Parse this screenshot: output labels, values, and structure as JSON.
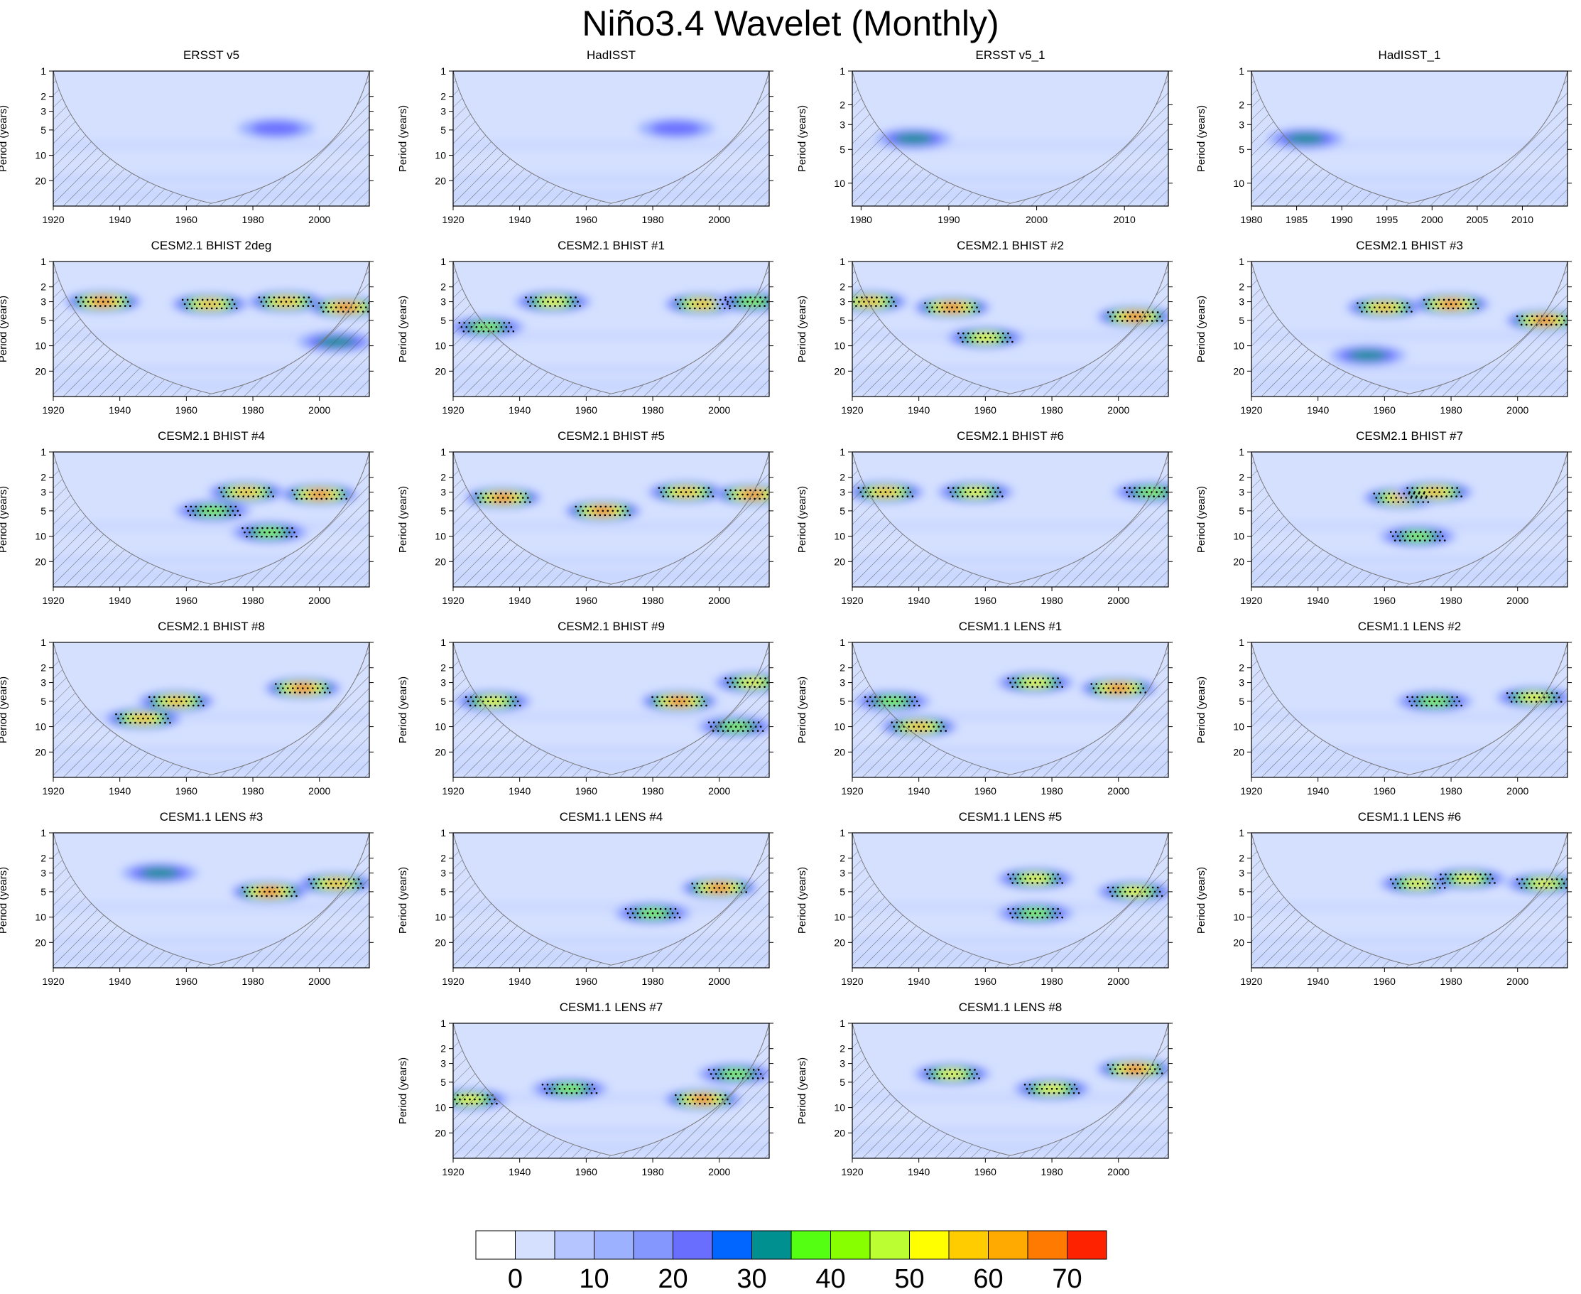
{
  "title": "Niño3.4 Wavelet (Monthly)",
  "ylabel": "Period (years)",
  "colorbar": {
    "colors": [
      "#ffffff",
      "#d5e0ff",
      "#b4c5ff",
      "#9cb1ff",
      "#8397ff",
      "#6a6eff",
      "#0066ff",
      "#009090",
      "#55ff11",
      "#88ff00",
      "#bbff33",
      "#ffff00",
      "#ffcc00",
      "#ffaa00",
      "#ff7a00",
      "#ff2200"
    ],
    "labels": [
      "0",
      "10",
      "20",
      "30",
      "40",
      "50",
      "60",
      "70"
    ]
  },
  "chart_data": [
    {
      "title": "ERSST v5",
      "type": "heatmap",
      "xticks": [
        "1920",
        "1940",
        "1960",
        "1980",
        "2000"
      ],
      "xlim": [
        1920,
        2015
      ],
      "yticks": [
        "1",
        "2",
        "3",
        "5",
        "10",
        "20"
      ],
      "ylim": [
        1,
        40
      ],
      "y_log": true,
      "hot": [
        [
          1987,
          4.8,
          25
        ]
      ],
      "noise_bands": [
        [
          1987,
          4.8,
          25
        ],
        [
          1953,
          5.5,
          18
        ],
        [
          1940,
          4.8,
          15
        ],
        [
          1925,
          2,
          10
        ]
      ]
    },
    {
      "title": "HadISST",
      "type": "heatmap",
      "xticks": [
        "1920",
        "1940",
        "1960",
        "1980",
        "2000"
      ],
      "xlim": [
        1920,
        2015
      ],
      "yticks": [
        "1",
        "2",
        "3",
        "5",
        "10",
        "20"
      ],
      "ylim": [
        1,
        40
      ],
      "y_log": true,
      "hot": [
        [
          1987,
          4.8,
          25
        ]
      ],
      "noise_bands": [
        [
          1987,
          4.8,
          25
        ],
        [
          1955,
          5.2,
          15
        ]
      ]
    },
    {
      "title": "ERSST v5_1",
      "type": "heatmap",
      "xticks": [
        "1980",
        "1990",
        "2000",
        "2010"
      ],
      "xlim": [
        1979,
        2015
      ],
      "yticks": [
        "1",
        "2",
        "3",
        "5",
        "10"
      ],
      "ylim": [
        1,
        16
      ],
      "y_log": true,
      "hot": [
        [
          1986,
          4,
          30
        ]
      ],
      "noise_bands": [
        [
          1986,
          4,
          30
        ],
        [
          1997,
          3.5,
          20
        ]
      ]
    },
    {
      "title": "HadISST_1",
      "type": "heatmap",
      "xticks": [
        "1980",
        "1985",
        "1990",
        "1995",
        "2000",
        "2005",
        "2010"
      ],
      "xlim": [
        1980,
        2015
      ],
      "yticks": [
        "1",
        "2",
        "3",
        "5",
        "10"
      ],
      "ylim": [
        1,
        16
      ],
      "y_log": true,
      "hot": [
        [
          1986,
          4,
          35
        ]
      ],
      "noise_bands": [
        [
          1986,
          4,
          35
        ],
        [
          1998,
          3.5,
          20
        ]
      ]
    },
    {
      "title": "CESM2.1 BHIST 2deg",
      "type": "heatmap",
      "xticks": [
        "1920",
        "1940",
        "1960",
        "1980",
        "2000"
      ],
      "xlim": [
        1920,
        2015
      ],
      "yticks": [
        "1",
        "2",
        "3",
        "5",
        "10",
        "20"
      ],
      "ylim": [
        1,
        40
      ],
      "y_log": true,
      "hot": [
        [
          1935,
          3,
          70
        ],
        [
          1967,
          3.2,
          60
        ],
        [
          1990,
          3,
          65
        ],
        [
          2008,
          3.5,
          70
        ],
        [
          2005,
          9,
          30
        ]
      ]
    },
    {
      "title": "CESM2.1 BHIST #1",
      "type": "heatmap",
      "xticks": [
        "1920",
        "1940",
        "1960",
        "1980",
        "2000"
      ],
      "xlim": [
        1920,
        2015
      ],
      "yticks": [
        "1",
        "2",
        "3",
        "5",
        "10",
        "20"
      ],
      "ylim": [
        1,
        40
      ],
      "y_log": true,
      "hot": [
        [
          1930,
          6,
          45
        ],
        [
          1950,
          3,
          55
        ],
        [
          1995,
          3.2,
          65
        ],
        [
          2010,
          3,
          40
        ]
      ]
    },
    {
      "title": "CESM2.1 BHIST #2",
      "type": "heatmap",
      "xticks": [
        "1920",
        "1940",
        "1960",
        "1980",
        "2000"
      ],
      "xlim": [
        1920,
        2015
      ],
      "yticks": [
        "1",
        "2",
        "3",
        "5",
        "10",
        "20"
      ],
      "ylim": [
        1,
        40
      ],
      "y_log": true,
      "hot": [
        [
          1950,
          3.5,
          70
        ],
        [
          1960,
          8,
          55
        ],
        [
          2005,
          4.5,
          70
        ],
        [
          1925,
          3,
          60
        ]
      ]
    },
    {
      "title": "CESM2.1 BHIST #3",
      "type": "heatmap",
      "xticks": [
        "1920",
        "1940",
        "1960",
        "1980",
        "2000"
      ],
      "xlim": [
        1920,
        2015
      ],
      "yticks": [
        "1",
        "2",
        "3",
        "5",
        "10",
        "20"
      ],
      "ylim": [
        1,
        40
      ],
      "y_log": true,
      "hot": [
        [
          1960,
          3.5,
          65
        ],
        [
          1980,
          3.2,
          70
        ],
        [
          2008,
          5,
          70
        ],
        [
          1955,
          13,
          30
        ]
      ]
    },
    {
      "title": "CESM2.1 BHIST #4",
      "type": "heatmap",
      "xticks": [
        "1920",
        "1940",
        "1960",
        "1980",
        "2000"
      ],
      "xlim": [
        1920,
        2015
      ],
      "yticks": [
        "1",
        "2",
        "3",
        "5",
        "10",
        "20"
      ],
      "ylim": [
        1,
        40
      ],
      "y_log": true,
      "hot": [
        [
          1978,
          3,
          60
        ],
        [
          2000,
          3.2,
          70
        ],
        [
          1968,
          5,
          45
        ],
        [
          1985,
          9,
          40
        ]
      ]
    },
    {
      "title": "CESM2.1 BHIST #5",
      "type": "heatmap",
      "xticks": [
        "1920",
        "1940",
        "1960",
        "1980",
        "2000"
      ],
      "xlim": [
        1920,
        2015
      ],
      "yticks": [
        "1",
        "2",
        "3",
        "5",
        "10",
        "20"
      ],
      "ylim": [
        1,
        40
      ],
      "y_log": true,
      "hot": [
        [
          1935,
          3.5,
          70
        ],
        [
          1965,
          5,
          70
        ],
        [
          1990,
          3,
          65
        ],
        [
          2010,
          3.2,
          70
        ]
      ]
    },
    {
      "title": "CESM2.1 BHIST #6",
      "type": "heatmap",
      "xticks": [
        "1920",
        "1940",
        "1960",
        "1980",
        "2000"
      ],
      "xlim": [
        1920,
        2015
      ],
      "yticks": [
        "1",
        "2",
        "3",
        "5",
        "10",
        "20"
      ],
      "ylim": [
        1,
        40
      ],
      "y_log": true,
      "hot": [
        [
          1930,
          3,
          60
        ],
        [
          1957,
          3,
          50
        ],
        [
          2010,
          3,
          40
        ]
      ]
    },
    {
      "title": "CESM2.1 BHIST #7",
      "type": "heatmap",
      "xticks": [
        "1920",
        "1940",
        "1960",
        "1980",
        "2000"
      ],
      "xlim": [
        1920,
        2015
      ],
      "yticks": [
        "1",
        "2",
        "3",
        "5",
        "10",
        "20"
      ],
      "ylim": [
        1,
        40
      ],
      "y_log": true,
      "hot": [
        [
          1965,
          3.5,
          60
        ],
        [
          1975,
          3,
          60
        ],
        [
          1970,
          10,
          40
        ]
      ]
    },
    {
      "title": "CESM2.1 BHIST #8",
      "type": "heatmap",
      "xticks": [
        "1920",
        "1940",
        "1960",
        "1980",
        "2000"
      ],
      "xlim": [
        1920,
        2015
      ],
      "yticks": [
        "1",
        "2",
        "3",
        "5",
        "10",
        "20"
      ],
      "ylim": [
        1,
        40
      ],
      "y_log": true,
      "hot": [
        [
          1947,
          8,
          65
        ],
        [
          1957,
          5,
          60
        ],
        [
          1995,
          3.5,
          70
        ]
      ]
    },
    {
      "title": "CESM2.1 BHIST #9",
      "type": "heatmap",
      "xticks": [
        "1920",
        "1940",
        "1960",
        "1980",
        "2000"
      ],
      "xlim": [
        1920,
        2015
      ],
      "yticks": [
        "1",
        "2",
        "3",
        "5",
        "10",
        "20"
      ],
      "ylim": [
        1,
        40
      ],
      "y_log": true,
      "hot": [
        [
          1932,
          5,
          50
        ],
        [
          1988,
          5,
          70
        ],
        [
          2005,
          10,
          45
        ],
        [
          2010,
          3,
          50
        ]
      ]
    },
    {
      "title": "CESM1.1 LENS #1",
      "type": "heatmap",
      "xticks": [
        "1920",
        "1940",
        "1960",
        "1980",
        "2000"
      ],
      "xlim": [
        1920,
        2015
      ],
      "yticks": [
        "1",
        "2",
        "3",
        "5",
        "10",
        "20"
      ],
      "ylim": [
        1,
        40
      ],
      "y_log": true,
      "hot": [
        [
          1940,
          10,
          60
        ],
        [
          2000,
          3.5,
          70
        ],
        [
          1975,
          3,
          50
        ],
        [
          1932,
          5,
          40
        ]
      ]
    },
    {
      "title": "CESM1.1 LENS #2",
      "type": "heatmap",
      "xticks": [
        "1920",
        "1940",
        "1960",
        "1980",
        "2000"
      ],
      "xlim": [
        1920,
        2015
      ],
      "yticks": [
        "1",
        "2",
        "3",
        "5",
        "10",
        "20"
      ],
      "ylim": [
        1,
        40
      ],
      "y_log": true,
      "hot": [
        [
          1975,
          5,
          45
        ],
        [
          2005,
          4.5,
          55
        ]
      ]
    },
    {
      "title": "CESM1.1 LENS #3",
      "type": "heatmap",
      "xticks": [
        "1920",
        "1940",
        "1960",
        "1980",
        "2000"
      ],
      "xlim": [
        1920,
        2015
      ],
      "yticks": [
        "1",
        "2",
        "3",
        "5",
        "10",
        "20"
      ],
      "ylim": [
        1,
        40
      ],
      "y_log": true,
      "hot": [
        [
          1985,
          5,
          70
        ],
        [
          2005,
          4,
          60
        ],
        [
          1952,
          3,
          35
        ]
      ]
    },
    {
      "title": "CESM1.1 LENS #4",
      "type": "heatmap",
      "xticks": [
        "1920",
        "1940",
        "1960",
        "1980",
        "2000"
      ],
      "xlim": [
        1920,
        2015
      ],
      "yticks": [
        "1",
        "2",
        "3",
        "5",
        "10",
        "20"
      ],
      "ylim": [
        1,
        40
      ],
      "y_log": true,
      "hot": [
        [
          2000,
          4.5,
          70
        ],
        [
          1980,
          9,
          45
        ]
      ]
    },
    {
      "title": "CESM1.1 LENS #5",
      "type": "heatmap",
      "xticks": [
        "1920",
        "1940",
        "1960",
        "1980",
        "2000"
      ],
      "xlim": [
        1920,
        2015
      ],
      "yticks": [
        "1",
        "2",
        "3",
        "5",
        "10",
        "20"
      ],
      "ylim": [
        1,
        40
      ],
      "y_log": true,
      "hot": [
        [
          1975,
          3.5,
          55
        ],
        [
          1975,
          9,
          45
        ],
        [
          2005,
          5,
          50
        ]
      ]
    },
    {
      "title": "CESM1.1 LENS #6",
      "type": "heatmap",
      "xticks": [
        "1920",
        "1940",
        "1960",
        "1980",
        "2000"
      ],
      "xlim": [
        1920,
        2015
      ],
      "yticks": [
        "1",
        "2",
        "3",
        "5",
        "10",
        "20"
      ],
      "ylim": [
        1,
        40
      ],
      "y_log": true,
      "hot": [
        [
          1970,
          4,
          55
        ],
        [
          1985,
          3.5,
          55
        ],
        [
          2008,
          4,
          50
        ]
      ]
    },
    {
      "title": "CESM1.1 LENS #7",
      "type": "heatmap",
      "xticks": [
        "1920",
        "1940",
        "1960",
        "1980",
        "2000"
      ],
      "xlim": [
        1920,
        2015
      ],
      "yticks": [
        "1",
        "2",
        "3",
        "5",
        "10",
        "20"
      ],
      "ylim": [
        1,
        40
      ],
      "y_log": true,
      "hot": [
        [
          1995,
          8,
          70
        ],
        [
          1925,
          8,
          55
        ],
        [
          1955,
          6,
          45
        ],
        [
          2005,
          4,
          45
        ]
      ]
    },
    {
      "title": "CESM1.1 LENS #8",
      "type": "heatmap",
      "xticks": [
        "1920",
        "1940",
        "1960",
        "1980",
        "2000"
      ],
      "xlim": [
        1920,
        2015
      ],
      "yticks": [
        "1",
        "2",
        "3",
        "5",
        "10",
        "20"
      ],
      "ylim": [
        1,
        40
      ],
      "y_log": true,
      "hot": [
        [
          2005,
          3.5,
          70
        ],
        [
          1950,
          4,
          50
        ],
        [
          1980,
          6,
          50
        ]
      ]
    }
  ]
}
